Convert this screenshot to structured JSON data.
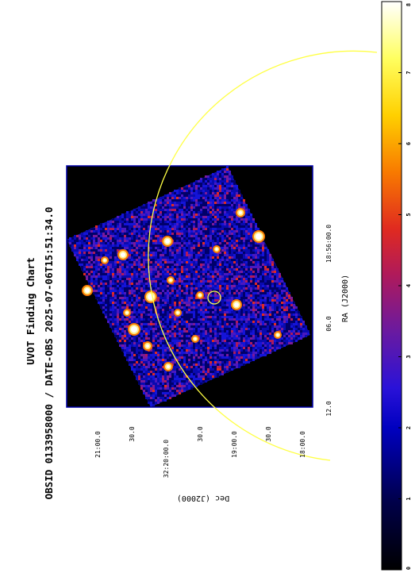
{
  "chart_data": {
    "type": "heatmap",
    "title": "UVOT Finding Chart",
    "subtitle": "OBSID 0133958000 / DATE-OBS 2025-07-06T15:51:34.0",
    "xlabel": "RA (J2000)",
    "ylabel": "Dec (J2000)",
    "ra_ticks": [
      "18:56:00.0",
      "06.0",
      "12.0"
    ],
    "dec_ticks": [
      "21:00.0",
      "30.0",
      "32:20:00.0",
      "30.0",
      "19:00.0",
      "30.0",
      "18:00.0"
    ],
    "colorbar": {
      "colormap": "black-blue-purple-red-orange-yellow-white",
      "range": [
        0,
        8
      ],
      "ticks": [
        "0",
        "1",
        "2",
        "3",
        "4",
        "5",
        "6",
        "7",
        "8"
      ]
    },
    "overlays": [
      {
        "shape": "circle",
        "color": "#ffff44",
        "label": "target marker"
      },
      {
        "shape": "circle",
        "color": "#ffff44",
        "label": "large field circle"
      }
    ],
    "colors": {
      "image_border": "#0000aa",
      "background": "#000000",
      "overlay": "#ffff44"
    }
  }
}
